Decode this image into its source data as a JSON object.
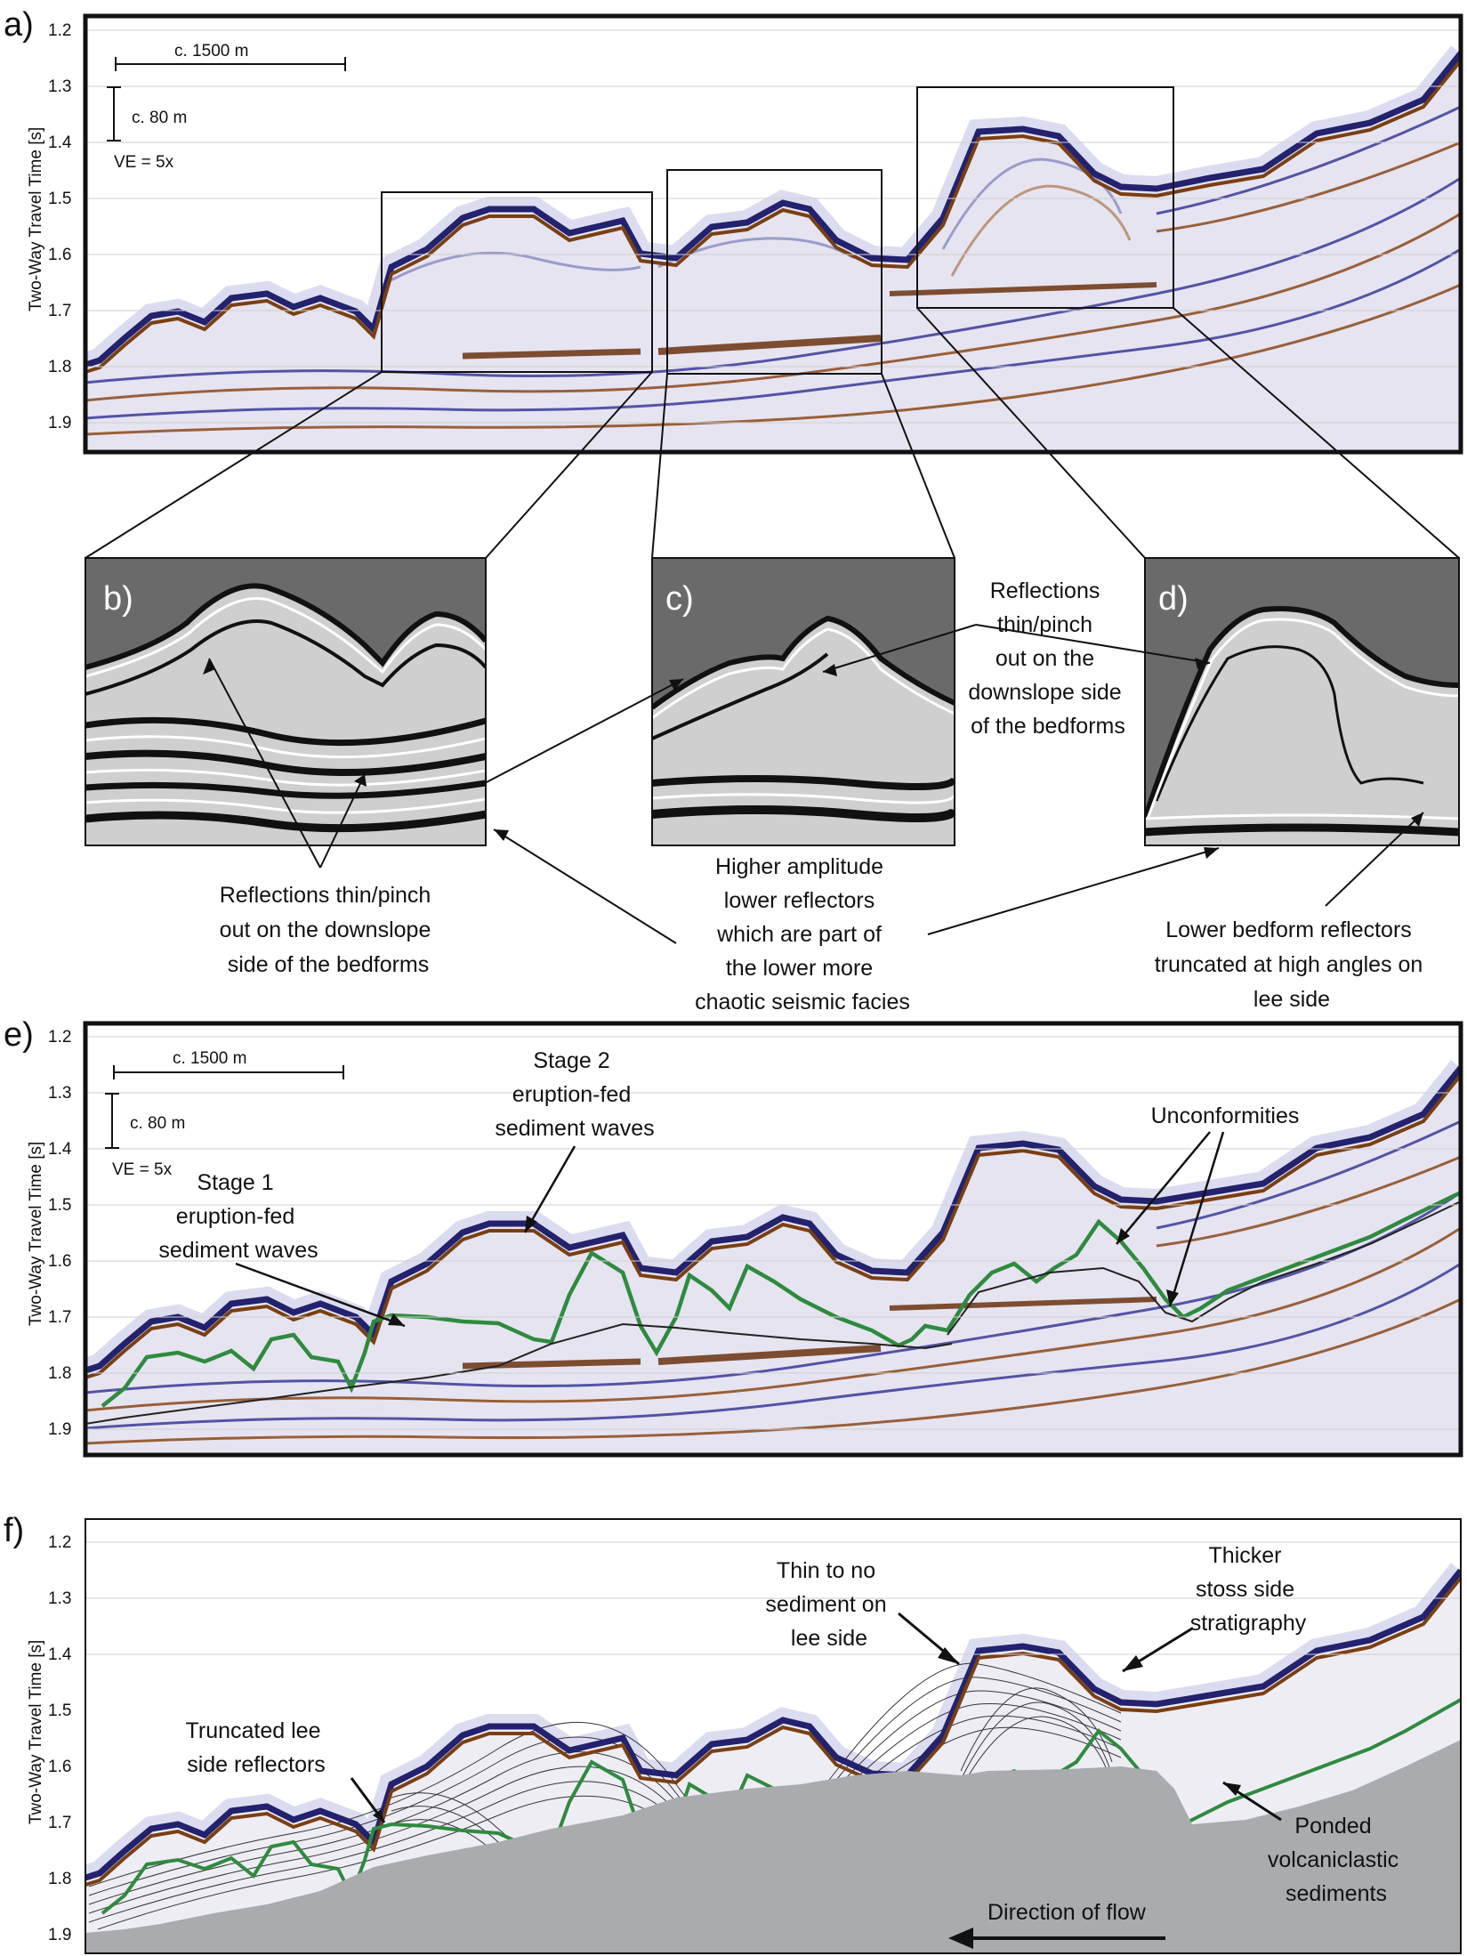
{
  "panels": {
    "a": {
      "label": "a)"
    },
    "b": {
      "label": "b)"
    },
    "c": {
      "label": "c)"
    },
    "d": {
      "label": "d)"
    },
    "e": {
      "label": "e)"
    },
    "f": {
      "label": "f)"
    }
  },
  "axis": {
    "ylabel": "Two-Way Travel Time [s]",
    "ticks": [
      "1.2",
      "1.3",
      "1.4",
      "1.5",
      "1.6",
      "1.7",
      "1.8",
      "1.9"
    ]
  },
  "scale": {
    "horizontal": "c. 1500 m",
    "vertical": "c. 80 m",
    "ve": "VE = 5x"
  },
  "annotations_bcd": {
    "reflections_thin_right": [
      "Reflections",
      "thin/pinch",
      "out on the",
      "downslope side",
      "of the bedforms"
    ],
    "reflections_thin_left": [
      "Reflections thin/pinch",
      "out on the downslope",
      "side of the bedforms"
    ],
    "higher_amplitude": [
      "Higher amplitude",
      "lower reflectors",
      "which are part of",
      "the lower more",
      "chaotic seismic facies"
    ],
    "lower_bedform": [
      "Lower bedform reflectors",
      "truncated at high angles on",
      "lee side"
    ]
  },
  "annotations_e": {
    "stage2": [
      "Stage 2",
      "eruption-fed",
      "sediment waves"
    ],
    "stage1": [
      "Stage 1",
      "eruption-fed",
      "sediment waves"
    ],
    "unconformities": "Unconformities"
  },
  "annotations_f": {
    "thin_lee": [
      "Thin to no",
      "sediment on",
      "lee side"
    ],
    "thicker_stoss": [
      "Thicker",
      "stoss side",
      "stratigraphy"
    ],
    "truncated_lee": [
      "Truncated lee",
      "side reflectors"
    ],
    "ponded": [
      "Ponded",
      "volcaniclastic",
      "sediments"
    ],
    "direction": "Direction of flow"
  },
  "colors": {
    "seismic_blue": "#2b2b8a",
    "seismic_brown": "#7a3f12",
    "green_horizon": "#2e8b3e",
    "basement_gray": "#a9abae",
    "inset_bg": "#6a6a6a"
  }
}
